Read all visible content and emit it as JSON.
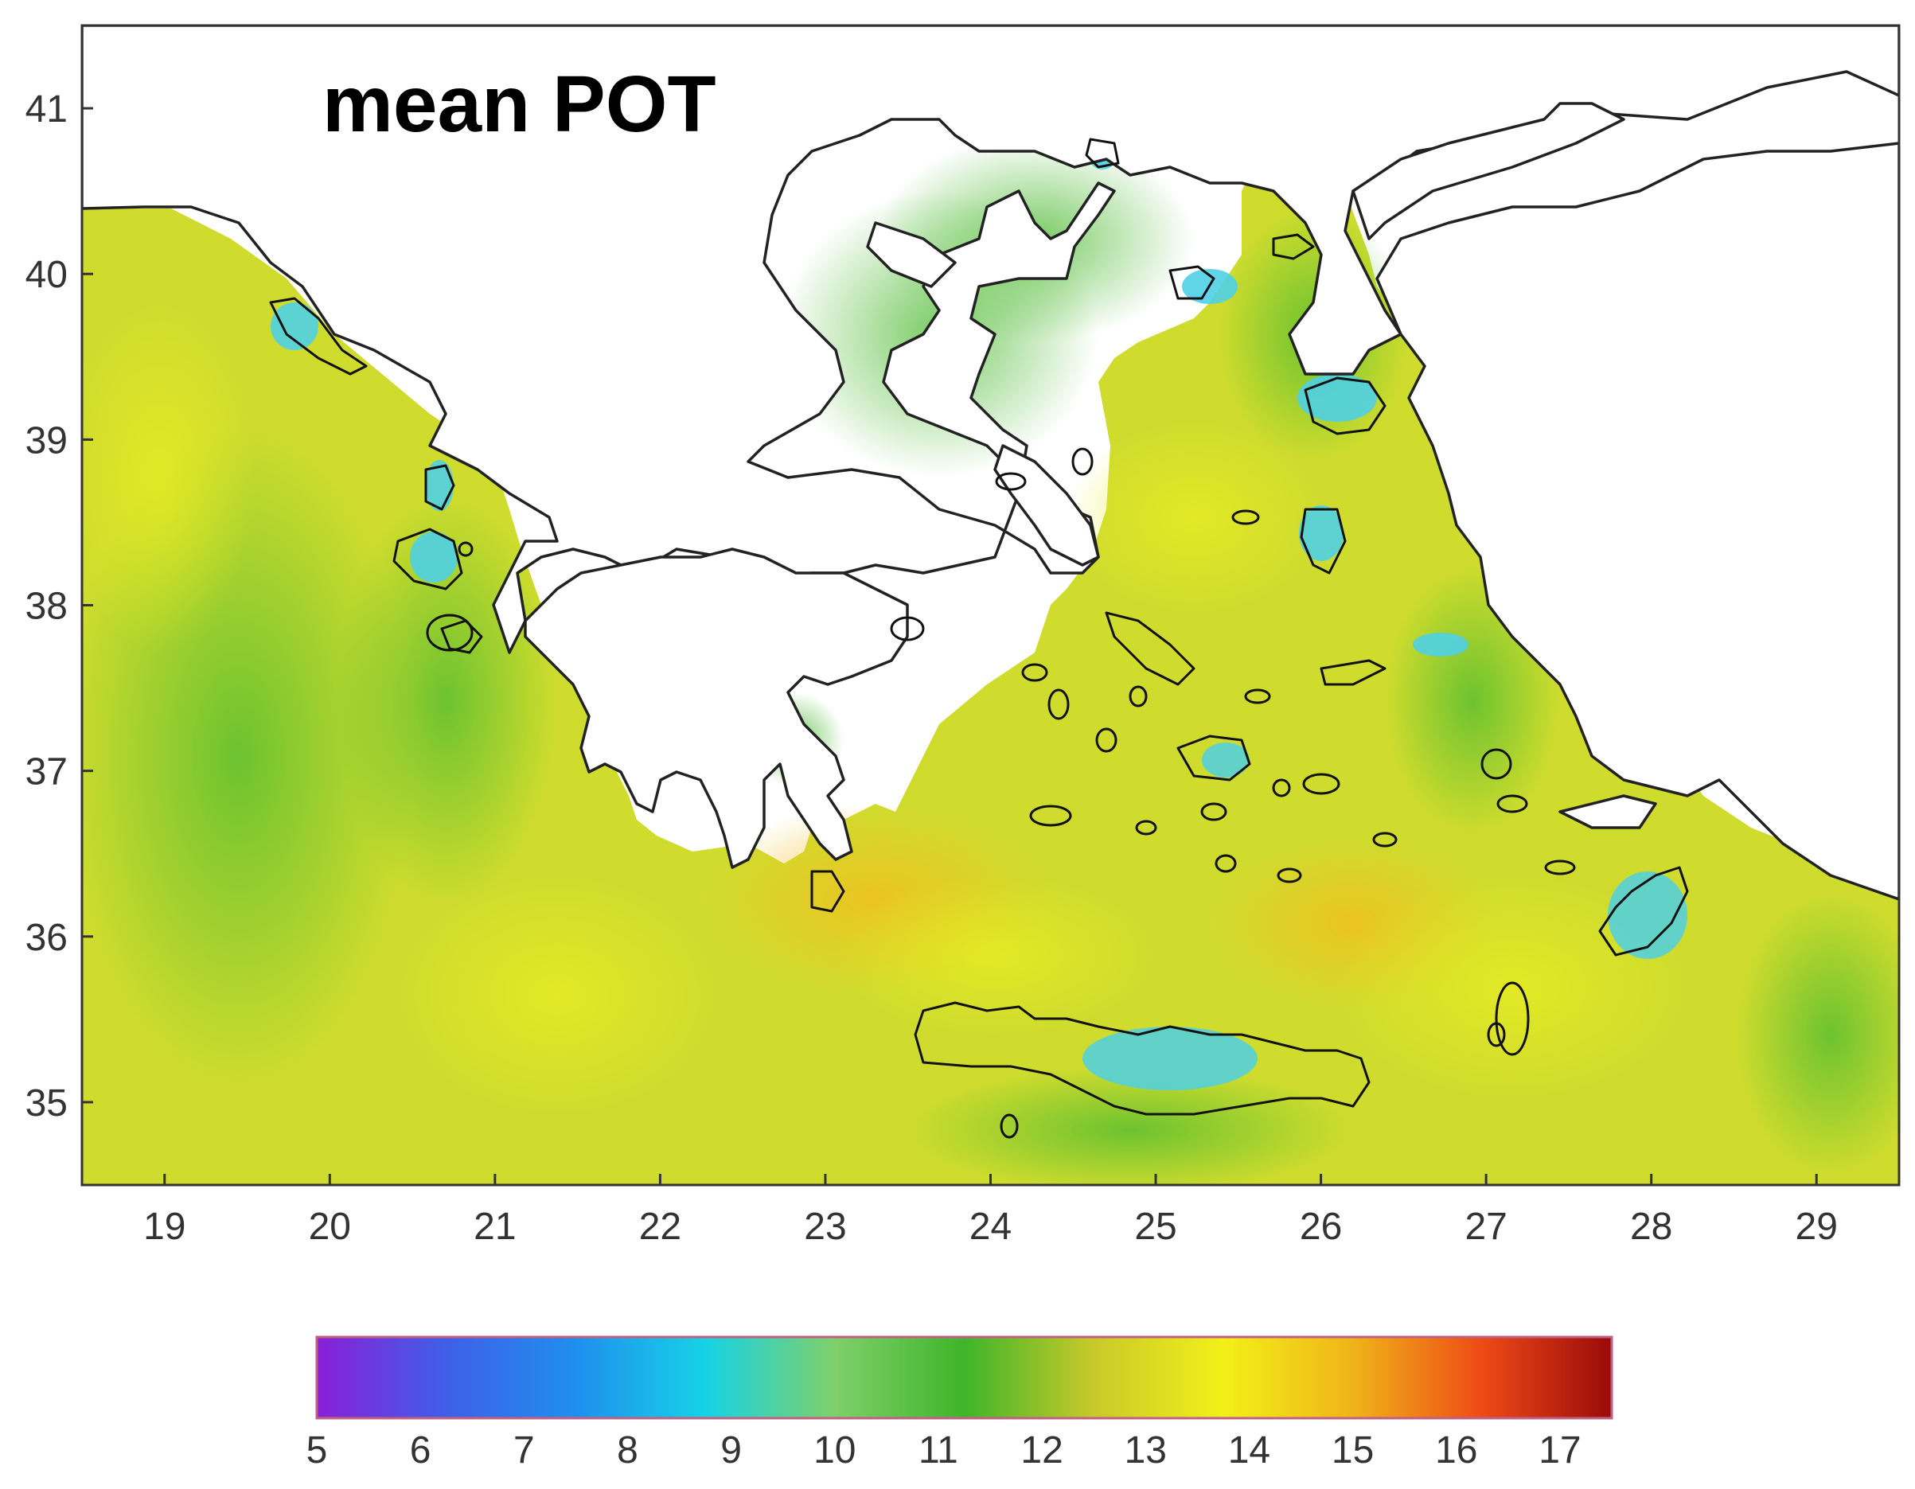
{
  "map": {
    "title": "mean POT",
    "lon_ticks": [
      "19",
      "20",
      "21",
      "22",
      "23",
      "24",
      "25",
      "26",
      "27",
      "28",
      "29"
    ],
    "lat_ticks": [
      "35",
      "36",
      "37",
      "38",
      "39",
      "40",
      "41"
    ],
    "lon_range": [
      18.5,
      29.5
    ],
    "lat_range": [
      34.5,
      41.5
    ]
  },
  "colorbar": {
    "ticks": [
      "5",
      "6",
      "7",
      "8",
      "9",
      "10",
      "11",
      "12",
      "13",
      "14",
      "15",
      "16",
      "17"
    ],
    "range": [
      5,
      17.5
    ],
    "colors": [
      "#8a1fd6",
      "#3f5fe8",
      "#1f8fee",
      "#16d2e6",
      "#7fd06a",
      "#3fb52a",
      "#c9c92a",
      "#f2f018",
      "#f0b418",
      "#ee4a16",
      "#9a0a0a"
    ]
  },
  "colors": {
    "background": "#ffffff",
    "coastline": "#222222",
    "sea_mid": "#d7e02a",
    "sea_green": "#6cc23c",
    "sea_blue": "#42d0e6"
  }
}
